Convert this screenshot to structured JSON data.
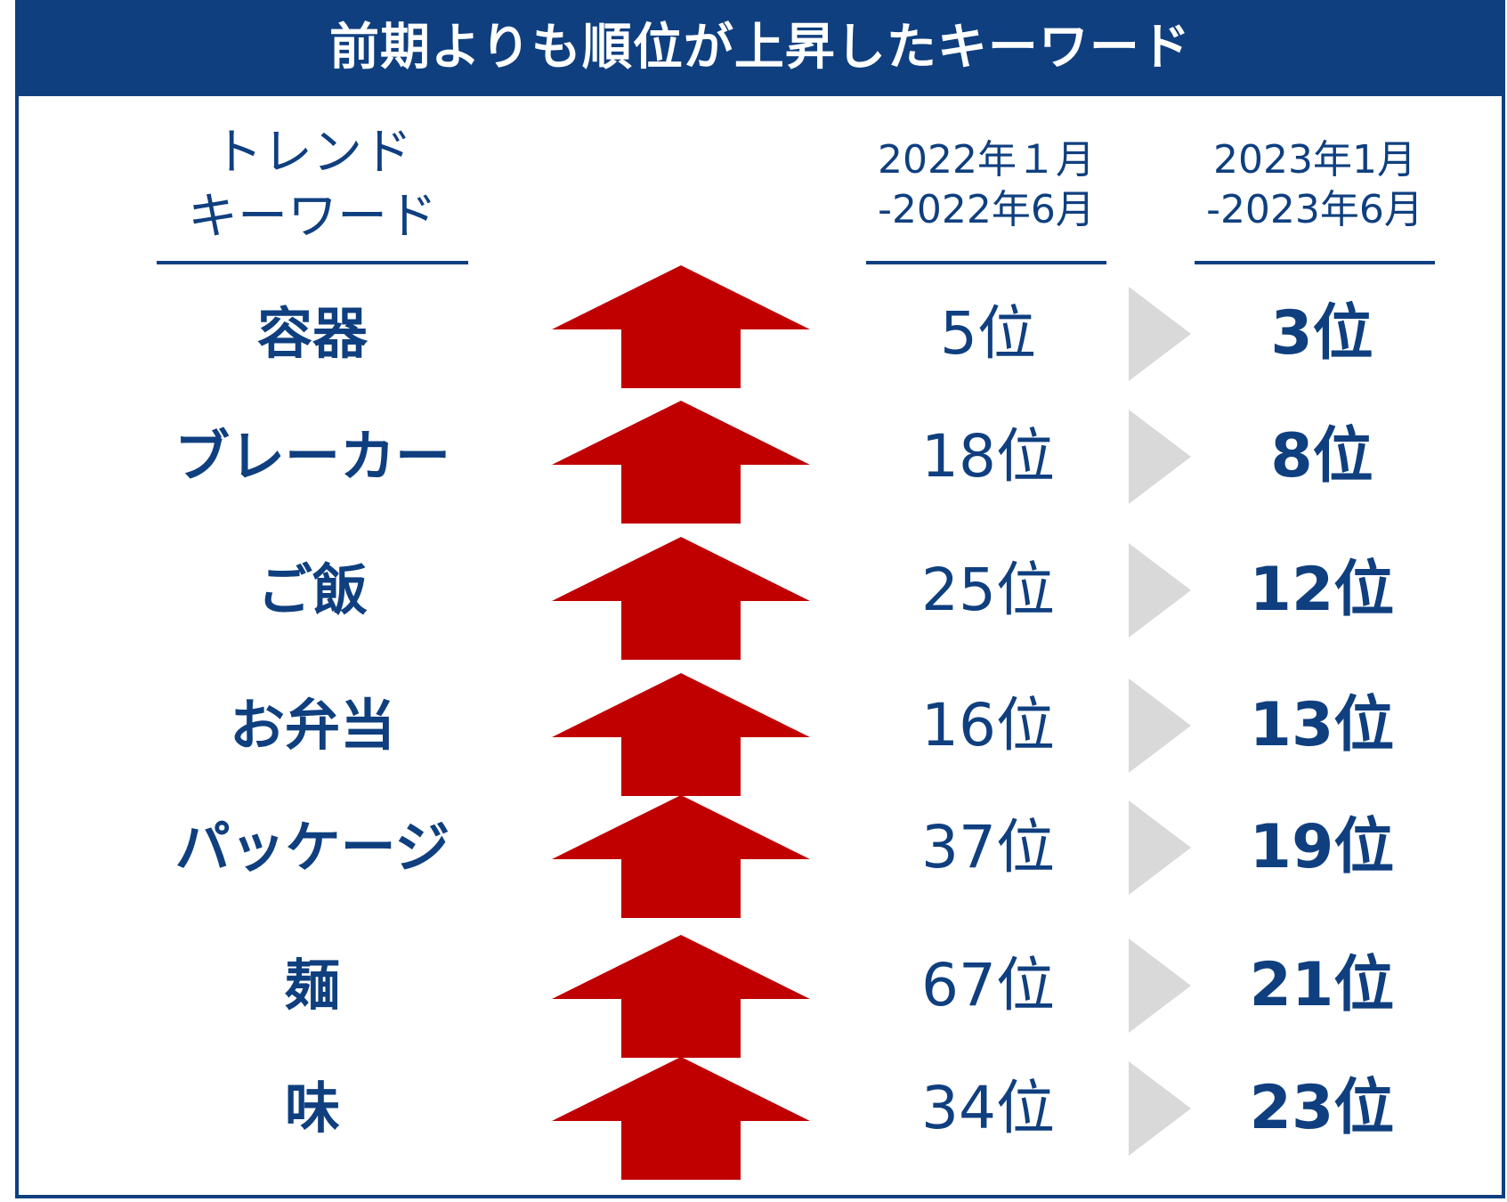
{
  "title": "前期よりも順位が上昇したキーワード",
  "headers": {
    "keyword": "トレンド\nキーワード",
    "period_prev": "2022年１月\n-2022年6月",
    "period_cur": "2023年1月\n-2023年6月"
  },
  "rows": [
    {
      "keyword": "容器",
      "prev_rank": "5位",
      "cur_rank": "3位",
      "trend": "up-arrow-icon"
    },
    {
      "keyword": "ブレーカー",
      "prev_rank": "18位",
      "cur_rank": "8位",
      "trend": "up-arrow-icon"
    },
    {
      "keyword": "ご飯",
      "prev_rank": "25位",
      "cur_rank": "12位",
      "trend": "up-arrow-icon"
    },
    {
      "keyword": "お弁当",
      "prev_rank": "16位",
      "cur_rank": "13位",
      "trend": "up-arrow-icon"
    },
    {
      "keyword": "パッケージ",
      "prev_rank": "37位",
      "cur_rank": "19位",
      "trend": "up-arrow-icon"
    },
    {
      "keyword": "麺",
      "prev_rank": "67位",
      "cur_rank": "21位",
      "trend": "up-arrow-icon"
    },
    {
      "keyword": "味",
      "prev_rank": "34位",
      "cur_rank": "23位",
      "trend": "up-arrow-icon"
    }
  ],
  "colors": {
    "brand": "#0f3f7f",
    "arrow": "#c00000",
    "triangle": "#d9d9d9"
  }
}
